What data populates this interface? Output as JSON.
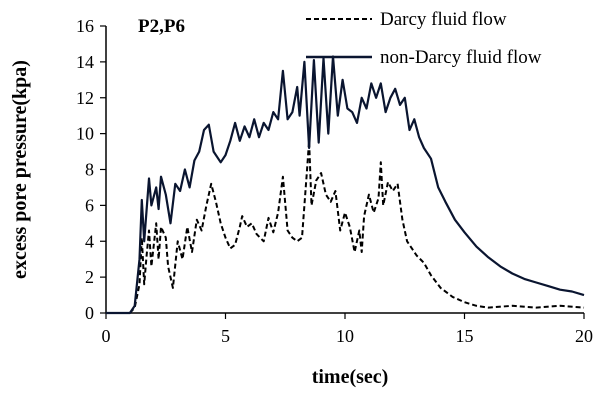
{
  "chart_data": {
    "type": "line",
    "title": "",
    "panel_label": "P2,P6",
    "xlabel": "time(sec)",
    "ylabel": "excess pore pressure(kpa)",
    "xlim": [
      0,
      20
    ],
    "ylim": [
      0,
      16
    ],
    "xticks": [
      0,
      5,
      10,
      15,
      20
    ],
    "yticks": [
      0,
      2,
      4,
      6,
      8,
      10,
      12,
      14,
      16
    ],
    "grid": false,
    "legend_position": "top-right",
    "series": [
      {
        "name": "Darcy fluid flow",
        "style": "dashed",
        "color": "#000000",
        "points": [
          [
            0,
            0
          ],
          [
            1.0,
            0
          ],
          [
            1.2,
            0.3
          ],
          [
            1.4,
            1.6
          ],
          [
            1.5,
            4.2
          ],
          [
            1.6,
            1.6
          ],
          [
            1.7,
            3.2
          ],
          [
            1.8,
            4.6
          ],
          [
            1.9,
            2.6
          ],
          [
            2.0,
            3.8
          ],
          [
            2.1,
            5.0
          ],
          [
            2.2,
            3.0
          ],
          [
            2.3,
            4.8
          ],
          [
            2.5,
            4.2
          ],
          [
            2.6,
            2.6
          ],
          [
            2.8,
            1.4
          ],
          [
            3.0,
            4.0
          ],
          [
            3.2,
            3.0
          ],
          [
            3.4,
            4.8
          ],
          [
            3.6,
            3.4
          ],
          [
            3.8,
            5.2
          ],
          [
            4.0,
            4.6
          ],
          [
            4.2,
            6.0
          ],
          [
            4.4,
            7.2
          ],
          [
            4.6,
            6.2
          ],
          [
            4.8,
            5.0
          ],
          [
            5.0,
            4.2
          ],
          [
            5.2,
            3.6
          ],
          [
            5.4,
            3.8
          ],
          [
            5.6,
            4.8
          ],
          [
            5.7,
            5.4
          ],
          [
            5.9,
            4.8
          ],
          [
            6.1,
            5.0
          ],
          [
            6.3,
            4.4
          ],
          [
            6.6,
            4.0
          ],
          [
            6.8,
            5.3
          ],
          [
            7.0,
            4.5
          ],
          [
            7.2,
            5.6
          ],
          [
            7.4,
            7.6
          ],
          [
            7.6,
            4.6
          ],
          [
            7.8,
            4.2
          ],
          [
            8.0,
            4.0
          ],
          [
            8.2,
            4.2
          ],
          [
            8.4,
            7.8
          ],
          [
            8.5,
            9.6
          ],
          [
            8.6,
            6.0
          ],
          [
            8.8,
            7.4
          ],
          [
            9.0,
            7.8
          ],
          [
            9.2,
            6.6
          ],
          [
            9.4,
            6.2
          ],
          [
            9.6,
            6.8
          ],
          [
            9.8,
            4.6
          ],
          [
            10.0,
            5.6
          ],
          [
            10.2,
            4.8
          ],
          [
            10.4,
            3.4
          ],
          [
            10.6,
            4.6
          ],
          [
            10.7,
            3.4
          ],
          [
            10.8,
            5.4
          ],
          [
            11.0,
            6.6
          ],
          [
            11.2,
            5.6
          ],
          [
            11.4,
            6.4
          ],
          [
            11.5,
            8.4
          ],
          [
            11.6,
            6.0
          ],
          [
            11.8,
            7.3
          ],
          [
            12.0,
            6.8
          ],
          [
            12.2,
            7.2
          ],
          [
            12.4,
            5.2
          ],
          [
            12.6,
            4.0
          ],
          [
            12.8,
            3.6
          ],
          [
            13.0,
            3.2
          ],
          [
            13.3,
            2.8
          ],
          [
            13.6,
            2.1
          ],
          [
            14.0,
            1.4
          ],
          [
            14.5,
            0.9
          ],
          [
            15.0,
            0.6
          ],
          [
            15.5,
            0.4
          ],
          [
            16.0,
            0.3
          ],
          [
            17.0,
            0.4
          ],
          [
            18.0,
            0.3
          ],
          [
            19.0,
            0.4
          ],
          [
            20.0,
            0.3
          ]
        ]
      },
      {
        "name": "non-Darcy fluid flow",
        "style": "solid",
        "color": "#0a1530",
        "points": [
          [
            0,
            0
          ],
          [
            1.0,
            0
          ],
          [
            1.2,
            0.4
          ],
          [
            1.4,
            3.0
          ],
          [
            1.5,
            6.3
          ],
          [
            1.6,
            4.0
          ],
          [
            1.8,
            7.5
          ],
          [
            1.9,
            6.0
          ],
          [
            2.1,
            7.0
          ],
          [
            2.2,
            5.8
          ],
          [
            2.3,
            7.6
          ],
          [
            2.5,
            6.6
          ],
          [
            2.7,
            5.0
          ],
          [
            2.9,
            7.2
          ],
          [
            3.1,
            6.8
          ],
          [
            3.3,
            8.0
          ],
          [
            3.5,
            7.0
          ],
          [
            3.7,
            8.5
          ],
          [
            3.9,
            9.0
          ],
          [
            4.1,
            10.2
          ],
          [
            4.3,
            10.5
          ],
          [
            4.5,
            9.0
          ],
          [
            4.8,
            8.4
          ],
          [
            5.0,
            8.8
          ],
          [
            5.2,
            9.6
          ],
          [
            5.4,
            10.6
          ],
          [
            5.6,
            9.6
          ],
          [
            5.8,
            10.4
          ],
          [
            6.0,
            9.8
          ],
          [
            6.2,
            10.8
          ],
          [
            6.4,
            9.8
          ],
          [
            6.6,
            10.6
          ],
          [
            6.8,
            10.2
          ],
          [
            7.0,
            11.2
          ],
          [
            7.2,
            10.8
          ],
          [
            7.4,
            13.5
          ],
          [
            7.6,
            10.8
          ],
          [
            7.8,
            11.2
          ],
          [
            8.0,
            12.6
          ],
          [
            8.1,
            11.0
          ],
          [
            8.3,
            14.0
          ],
          [
            8.5,
            9.2
          ],
          [
            8.7,
            14.1
          ],
          [
            8.9,
            9.5
          ],
          [
            9.1,
            14.2
          ],
          [
            9.3,
            10.0
          ],
          [
            9.5,
            14.3
          ],
          [
            9.7,
            11.0
          ],
          [
            9.9,
            13.0
          ],
          [
            10.1,
            11.4
          ],
          [
            10.3,
            11.2
          ],
          [
            10.5,
            10.6
          ],
          [
            10.7,
            12.0
          ],
          [
            10.9,
            11.4
          ],
          [
            11.1,
            12.8
          ],
          [
            11.3,
            12.0
          ],
          [
            11.5,
            12.8
          ],
          [
            11.7,
            11.2
          ],
          [
            11.9,
            12.0
          ],
          [
            12.1,
            12.5
          ],
          [
            12.3,
            11.6
          ],
          [
            12.5,
            12.0
          ],
          [
            12.7,
            10.2
          ],
          [
            12.9,
            10.8
          ],
          [
            13.1,
            9.8
          ],
          [
            13.3,
            9.2
          ],
          [
            13.6,
            8.6
          ],
          [
            13.9,
            7.0
          ],
          [
            14.2,
            6.2
          ],
          [
            14.6,
            5.2
          ],
          [
            15.0,
            4.5
          ],
          [
            15.5,
            3.7
          ],
          [
            16.0,
            3.1
          ],
          [
            16.5,
            2.6
          ],
          [
            17.0,
            2.2
          ],
          [
            17.5,
            1.9
          ],
          [
            18.0,
            1.7
          ],
          [
            18.5,
            1.5
          ],
          [
            19.0,
            1.3
          ],
          [
            19.5,
            1.2
          ],
          [
            20.0,
            1.0
          ]
        ]
      }
    ]
  }
}
